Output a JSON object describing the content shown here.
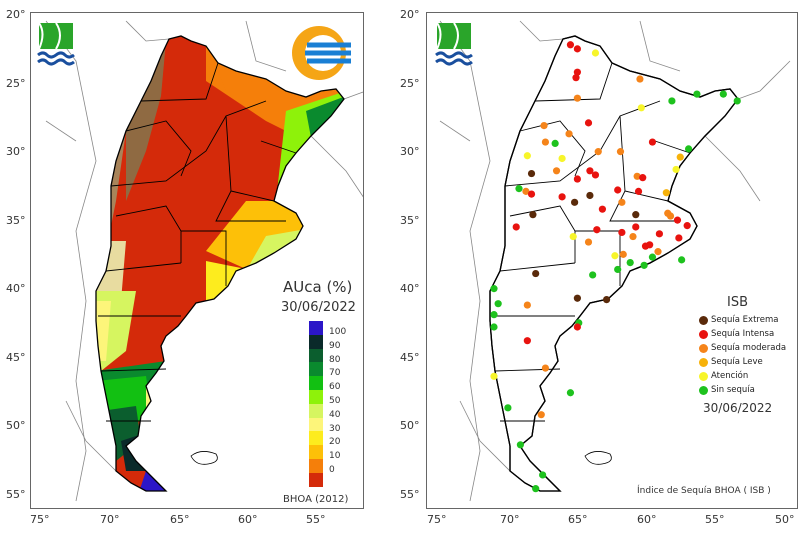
{
  "left_map": {
    "title": "AUca (%)",
    "date": "30/06/2022",
    "source": "BHOA (2012)",
    "legend": [
      {
        "label": "100",
        "color": "#2b16c8"
      },
      {
        "label": "90",
        "color": "#0a2a2a"
      },
      {
        "label": "80",
        "color": "#0b5e2e"
      },
      {
        "label": "70",
        "color": "#0a8a2e"
      },
      {
        "label": "60",
        "color": "#12c012"
      },
      {
        "label": "50",
        "color": "#8ef20a"
      },
      {
        "label": "40",
        "color": "#d6f560"
      },
      {
        "label": "30",
        "color": "#fdf57a"
      },
      {
        "label": "20",
        "color": "#fdec1e"
      },
      {
        "label": "10",
        "color": "#fdc008"
      },
      {
        "label": "0",
        "color": "#f57f0a"
      },
      {
        "label": "",
        "color": "#d42a0a"
      }
    ]
  },
  "right_map": {
    "title": "ISB",
    "date": "30/06/2022",
    "source": "Índice de Sequía BHOA ( ISB )",
    "legend": [
      {
        "key": "E",
        "label": "Sequía Extrema",
        "color": "#5a2a0a"
      },
      {
        "key": "I",
        "label": "Sequía Intensa",
        "color": "#e8130f"
      },
      {
        "key": "M",
        "label": "Sequía moderada",
        "color": "#f5841a"
      },
      {
        "key": "L",
        "label": "Sequía Leve",
        "color": "#f7b20a"
      },
      {
        "key": "A",
        "label": "Atención",
        "color": "#f7f52a"
      },
      {
        "key": "S",
        "label": "Sin sequía",
        "color": "#1ec21e"
      }
    ],
    "stations": [
      {
        "lon": 65.4,
        "lat": 22.1,
        "c": "I"
      },
      {
        "lon": 64.9,
        "lat": 22.4,
        "c": "I"
      },
      {
        "lon": 63.6,
        "lat": 22.7,
        "c": "A"
      },
      {
        "lon": 64.9,
        "lat": 24.1,
        "c": "I"
      },
      {
        "lon": 65.0,
        "lat": 24.5,
        "c": "I"
      },
      {
        "lon": 64.9,
        "lat": 26.0,
        "c": "M"
      },
      {
        "lon": 60.4,
        "lat": 24.6,
        "c": "M"
      },
      {
        "lon": 60.3,
        "lat": 26.7,
        "c": "A"
      },
      {
        "lon": 58.1,
        "lat": 26.2,
        "c": "S"
      },
      {
        "lon": 56.3,
        "lat": 25.7,
        "c": "S"
      },
      {
        "lon": 54.4,
        "lat": 25.7,
        "c": "S"
      },
      {
        "lon": 53.4,
        "lat": 26.2,
        "c": "S"
      },
      {
        "lon": 64.1,
        "lat": 27.8,
        "c": "I"
      },
      {
        "lon": 67.3,
        "lat": 28.0,
        "c": "M"
      },
      {
        "lon": 65.5,
        "lat": 28.6,
        "c": "M"
      },
      {
        "lon": 67.2,
        "lat": 29.2,
        "c": "M"
      },
      {
        "lon": 66.5,
        "lat": 29.3,
        "c": "S"
      },
      {
        "lon": 63.4,
        "lat": 29.9,
        "c": "M"
      },
      {
        "lon": 61.8,
        "lat": 29.9,
        "c": "M"
      },
      {
        "lon": 59.5,
        "lat": 29.2,
        "c": "I"
      },
      {
        "lon": 56.9,
        "lat": 29.7,
        "c": "S"
      },
      {
        "lon": 57.5,
        "lat": 30.3,
        "c": "L"
      },
      {
        "lon": 68.5,
        "lat": 30.2,
        "c": "A"
      },
      {
        "lon": 66.0,
        "lat": 30.4,
        "c": "A"
      },
      {
        "lon": 57.8,
        "lat": 31.2,
        "c": "A"
      },
      {
        "lon": 68.2,
        "lat": 31.5,
        "c": "E"
      },
      {
        "lon": 66.4,
        "lat": 31.3,
        "c": "M"
      },
      {
        "lon": 64.0,
        "lat": 31.3,
        "c": "I"
      },
      {
        "lon": 63.6,
        "lat": 31.6,
        "c": "I"
      },
      {
        "lon": 64.9,
        "lat": 31.9,
        "c": "I"
      },
      {
        "lon": 60.6,
        "lat": 31.7,
        "c": "M"
      },
      {
        "lon": 60.2,
        "lat": 31.8,
        "c": "I"
      },
      {
        "lon": 69.1,
        "lat": 32.6,
        "c": "S"
      },
      {
        "lon": 68.6,
        "lat": 32.8,
        "c": "M"
      },
      {
        "lon": 68.2,
        "lat": 33.0,
        "c": "I"
      },
      {
        "lon": 66.0,
        "lat": 33.2,
        "c": "I"
      },
      {
        "lon": 64.0,
        "lat": 33.1,
        "c": "E"
      },
      {
        "lon": 65.1,
        "lat": 33.6,
        "c": "E"
      },
      {
        "lon": 62.0,
        "lat": 32.7,
        "c": "I"
      },
      {
        "lon": 60.5,
        "lat": 32.8,
        "c": "I"
      },
      {
        "lon": 58.5,
        "lat": 32.9,
        "c": "L"
      },
      {
        "lon": 61.7,
        "lat": 33.6,
        "c": "M"
      },
      {
        "lon": 63.1,
        "lat": 34.1,
        "c": "I"
      },
      {
        "lon": 68.1,
        "lat": 34.5,
        "c": "E"
      },
      {
        "lon": 60.7,
        "lat": 34.5,
        "c": "E"
      },
      {
        "lon": 58.4,
        "lat": 34.4,
        "c": "M"
      },
      {
        "lon": 58.2,
        "lat": 34.6,
        "c": "M"
      },
      {
        "lon": 57.7,
        "lat": 34.9,
        "c": "I"
      },
      {
        "lon": 57.0,
        "lat": 35.3,
        "c": "I"
      },
      {
        "lon": 69.3,
        "lat": 35.4,
        "c": "I"
      },
      {
        "lon": 63.5,
        "lat": 35.6,
        "c": "I"
      },
      {
        "lon": 60.7,
        "lat": 35.4,
        "c": "I"
      },
      {
        "lon": 61.7,
        "lat": 35.8,
        "c": "I"
      },
      {
        "lon": 59.0,
        "lat": 35.9,
        "c": "I"
      },
      {
        "lon": 60.9,
        "lat": 36.1,
        "c": "M"
      },
      {
        "lon": 57.6,
        "lat": 36.2,
        "c": "I"
      },
      {
        "lon": 65.2,
        "lat": 36.1,
        "c": "A"
      },
      {
        "lon": 64.1,
        "lat": 36.5,
        "c": "M"
      },
      {
        "lon": 60.0,
        "lat": 36.8,
        "c": "I"
      },
      {
        "lon": 59.7,
        "lat": 36.7,
        "c": "I"
      },
      {
        "lon": 59.1,
        "lat": 37.2,
        "c": "M"
      },
      {
        "lon": 62.2,
        "lat": 37.5,
        "c": "A"
      },
      {
        "lon": 61.6,
        "lat": 37.4,
        "c": "M"
      },
      {
        "lon": 59.5,
        "lat": 37.6,
        "c": "S"
      },
      {
        "lon": 61.1,
        "lat": 38.0,
        "c": "S"
      },
      {
        "lon": 60.1,
        "lat": 38.2,
        "c": "S"
      },
      {
        "lon": 57.4,
        "lat": 37.8,
        "c": "S"
      },
      {
        "lon": 62.0,
        "lat": 38.5,
        "c": "S"
      },
      {
        "lon": 67.9,
        "lat": 38.8,
        "c": "E"
      },
      {
        "lon": 63.8,
        "lat": 38.9,
        "c": "S"
      },
      {
        "lon": 70.9,
        "lat": 39.9,
        "c": "S"
      },
      {
        "lon": 64.9,
        "lat": 40.6,
        "c": "E"
      },
      {
        "lon": 62.8,
        "lat": 40.7,
        "c": "E"
      },
      {
        "lon": 70.6,
        "lat": 41.0,
        "c": "S"
      },
      {
        "lon": 68.5,
        "lat": 41.1,
        "c": "M"
      },
      {
        "lon": 70.9,
        "lat": 41.8,
        "c": "S"
      },
      {
        "lon": 64.8,
        "lat": 42.4,
        "c": "S"
      },
      {
        "lon": 70.9,
        "lat": 42.7,
        "c": "S"
      },
      {
        "lon": 64.9,
        "lat": 42.7,
        "c": "I"
      },
      {
        "lon": 68.5,
        "lat": 43.7,
        "c": "I"
      },
      {
        "lon": 67.2,
        "lat": 45.7,
        "c": "M"
      },
      {
        "lon": 70.9,
        "lat": 46.3,
        "c": "A"
      },
      {
        "lon": 65.4,
        "lat": 47.5,
        "c": "S"
      },
      {
        "lon": 69.9,
        "lat": 48.6,
        "c": "S"
      },
      {
        "lon": 67.5,
        "lat": 49.1,
        "c": "M"
      },
      {
        "lon": 69.0,
        "lat": 51.3,
        "c": "S"
      },
      {
        "lon": 67.4,
        "lat": 53.5,
        "c": "S"
      },
      {
        "lon": 67.9,
        "lat": 54.5,
        "c": "S"
      }
    ]
  },
  "axes": {
    "lon_ticks": [
      "75°",
      "70°",
      "65°",
      "60°",
      "55°",
      "50°"
    ],
    "lat_ticks": [
      "20°",
      "25°",
      "30°",
      "35°",
      "40°",
      "45°",
      "50°",
      "55°"
    ]
  }
}
